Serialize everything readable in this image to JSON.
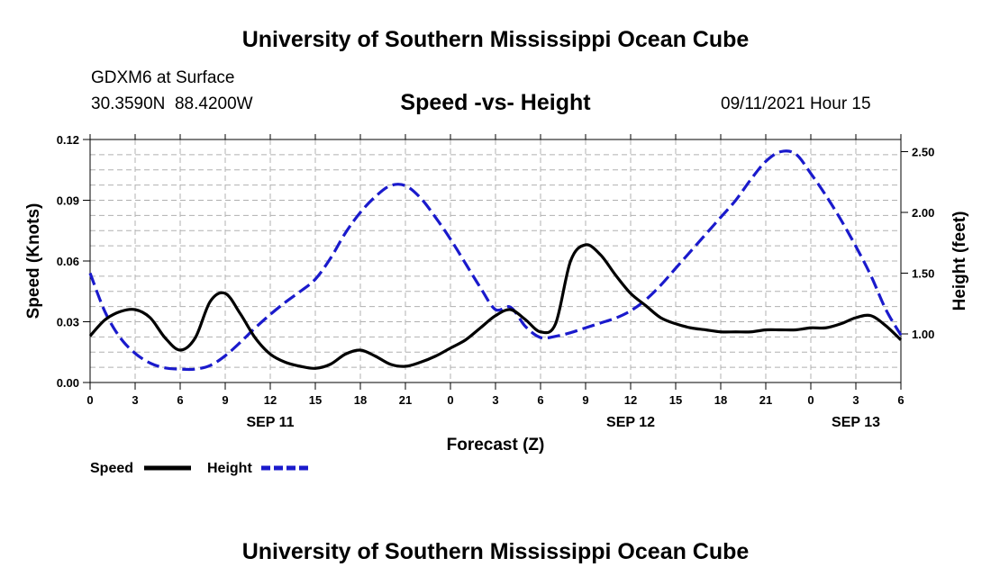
{
  "header": {
    "title": "University of Southern Mississippi Ocean Cube",
    "station": "GDXM6 at Surface",
    "lat": "30.3590N",
    "lon": "88.4200W",
    "chart_title": "Speed -vs- Height",
    "datetime": "09/11/2021 Hour 15"
  },
  "footer": {
    "title": "University of Southern Mississippi Ocean Cube"
  },
  "legend": {
    "speed_label": "Speed",
    "height_label": "Height"
  },
  "colors": {
    "speed": "#000000",
    "height": "#1a1acc",
    "grid": "#b0b0b0"
  },
  "chart_data": {
    "type": "line",
    "title": "Speed -vs- Height",
    "xlabel": "Forecast (Z)",
    "ylabel": "Speed (Knots)",
    "y2label": "Height (feet)",
    "x_range": [
      0,
      54
    ],
    "ylim": [
      0,
      0.12
    ],
    "y2lim": [
      0.6,
      2.6
    ],
    "x_ticks": [
      0,
      3,
      6,
      9,
      12,
      15,
      18,
      21,
      24,
      27,
      30,
      33,
      36,
      39,
      42,
      45,
      48,
      51,
      54
    ],
    "x_tick_labels": [
      "0",
      "3",
      "6",
      "9",
      "12",
      "15",
      "18",
      "21",
      "0",
      "3",
      "6",
      "9",
      "12",
      "15",
      "18",
      "21",
      "0",
      "3",
      "6"
    ],
    "y_ticks": [
      "0.00",
      "0.03",
      "0.06",
      "0.09",
      "0.12"
    ],
    "y2_ticks": [
      "1.00",
      "1.50",
      "2.00",
      "2.50"
    ],
    "date_labels": [
      {
        "x": 12,
        "label": "SEP 11"
      },
      {
        "x": 36,
        "label": "SEP 12"
      },
      {
        "x": 51,
        "label": "SEP 13"
      }
    ],
    "grid": true,
    "series": [
      {
        "name": "Speed",
        "axis": "left",
        "style": "solid",
        "x": [
          0,
          1,
          2,
          3,
          4,
          5,
          6,
          7,
          8,
          9,
          10,
          11,
          12,
          13,
          14,
          15,
          16,
          17,
          18,
          19,
          20,
          21,
          22,
          23,
          24,
          25,
          26,
          27,
          28,
          29,
          30,
          31,
          32,
          33,
          34,
          35,
          36,
          37,
          38,
          39,
          40,
          41,
          42,
          43,
          44,
          45,
          46,
          47,
          48,
          49,
          50,
          51,
          52,
          53,
          54
        ],
        "values": [
          0.023,
          0.031,
          0.035,
          0.036,
          0.032,
          0.022,
          0.016,
          0.022,
          0.04,
          0.044,
          0.034,
          0.022,
          0.014,
          0.01,
          0.008,
          0.007,
          0.009,
          0.014,
          0.016,
          0.013,
          0.009,
          0.008,
          0.01,
          0.013,
          0.017,
          0.021,
          0.027,
          0.033,
          0.036,
          0.031,
          0.025,
          0.029,
          0.06,
          0.068,
          0.063,
          0.053,
          0.044,
          0.038,
          0.032,
          0.029,
          0.027,
          0.026,
          0.025,
          0.025,
          0.025,
          0.026,
          0.026,
          0.026,
          0.027,
          0.027,
          0.029,
          0.032,
          0.033,
          0.028,
          0.021
        ]
      },
      {
        "name": "Height",
        "axis": "right",
        "style": "dashed",
        "x": [
          0,
          1,
          2,
          3,
          4,
          5,
          6,
          7,
          8,
          9,
          10,
          11,
          12,
          13,
          14,
          15,
          16,
          17,
          18,
          19,
          20,
          21,
          22,
          23,
          24,
          25,
          26,
          27,
          28,
          29,
          30,
          31,
          32,
          33,
          34,
          35,
          36,
          37,
          38,
          39,
          40,
          41,
          42,
          43,
          44,
          45,
          46,
          47,
          48,
          49,
          50,
          51,
          52,
          53,
          54
        ],
        "values": [
          1.5,
          1.18,
          0.97,
          0.84,
          0.76,
          0.72,
          0.71,
          0.71,
          0.74,
          0.82,
          0.93,
          1.05,
          1.16,
          1.26,
          1.35,
          1.45,
          1.62,
          1.83,
          2.0,
          2.13,
          2.22,
          2.22,
          2.12,
          1.96,
          1.78,
          1.58,
          1.38,
          1.2,
          1.22,
          1.06,
          0.97,
          0.98,
          1.01,
          1.05,
          1.09,
          1.13,
          1.19,
          1.28,
          1.4,
          1.54,
          1.68,
          1.82,
          1.96,
          2.1,
          2.27,
          2.42,
          2.5,
          2.48,
          2.32,
          2.14,
          1.94,
          1.72,
          1.48,
          1.2,
          0.99
        ]
      }
    ]
  }
}
